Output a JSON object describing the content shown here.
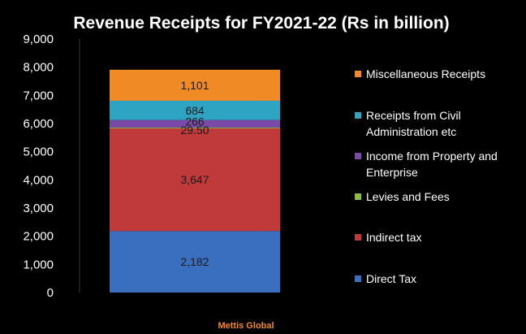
{
  "chart_data": {
    "type": "bar",
    "stacked": true,
    "title": "Revenue Receipts for FY2021-22 (Rs in billion)",
    "xlabel": "",
    "ylabel": "",
    "ylim": [
      0,
      9000
    ],
    "yticks": [
      0,
      1000,
      2000,
      3000,
      4000,
      5000,
      6000,
      7000,
      8000,
      9000
    ],
    "ytick_labels": [
      "0",
      "1,000",
      "2,000",
      "3,000",
      "4,000",
      "5,000",
      "6,000",
      "7,000",
      "8,000",
      "9,000"
    ],
    "grid": false,
    "legend_position": "right",
    "series": [
      {
        "name": "Direct Tax",
        "value": 2182,
        "label": "2,182",
        "color": "#3a6fc0"
      },
      {
        "name": "Indirect tax",
        "value": 3647,
        "label": "3,647",
        "color": "#c0393b"
      },
      {
        "name": "Levies and Fees",
        "value": 29.5,
        "label": "29.50",
        "color": "#8dbb3e"
      },
      {
        "name": "Income from Property and Enterprise",
        "value": 266,
        "label": "266",
        "color": "#7b4aa8"
      },
      {
        "name": "Receipts from Civil Administration etc",
        "value": 684,
        "label": "684",
        "color": "#2fa3c2"
      },
      {
        "name": "Miscellaneous Receipts",
        "value": 1101,
        "label": "1,101",
        "color": "#f08a24"
      }
    ],
    "legend": [
      {
        "lines": [
          "Miscellaneous Receipts"
        ],
        "color": "#f08a24"
      },
      {
        "lines": [
          "Receipts from Civil",
          "Administration etc"
        ],
        "color": "#2fa3c2"
      },
      {
        "lines": [
          "Income from Property and",
          "Enterprise"
        ],
        "color": "#7b4aa8"
      },
      {
        "lines": [
          "Levies and Fees"
        ],
        "color": "#8dbb3e"
      },
      {
        "lines": [
          "Indirect tax"
        ],
        "color": "#c0393b"
      },
      {
        "lines": [
          "Direct Tax"
        ],
        "color": "#3a6fc0"
      }
    ]
  },
  "footer": {
    "text": "Mettis Global",
    "color": "#f08a24"
  }
}
